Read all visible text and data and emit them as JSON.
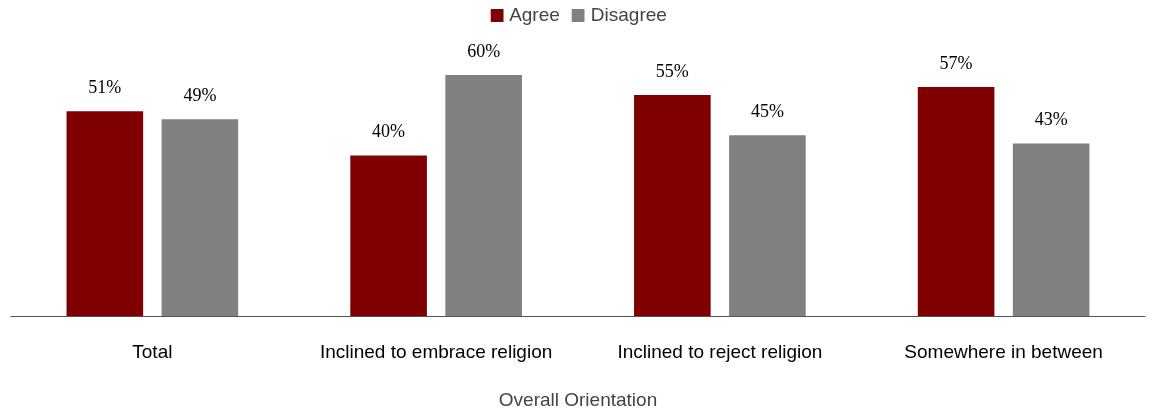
{
  "chart_data": {
    "type": "bar",
    "xlabel": "Overall Orientation",
    "categories": [
      "Total",
      "Inclined to embrace religion",
      "Inclined to reject religion",
      "Somewhere in between"
    ],
    "series": [
      {
        "name": "Agree",
        "color": "#7f0000",
        "values": [
          51,
          40,
          55,
          57
        ],
        "value_labels": [
          "51%",
          "40%",
          "55%",
          "57%"
        ]
      },
      {
        "name": "Disagree",
        "color": "#808080",
        "values": [
          49,
          60,
          45,
          43
        ],
        "value_labels": [
          "49%",
          "60%",
          "45%",
          "43%"
        ]
      }
    ],
    "legend": "top"
  }
}
